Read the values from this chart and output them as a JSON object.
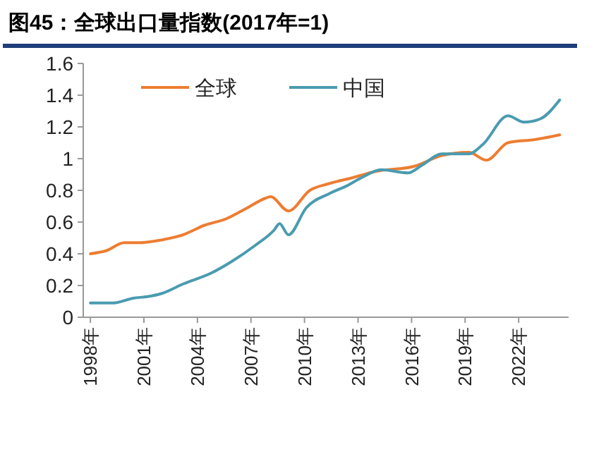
{
  "chart_data": {
    "type": "line",
    "title": "图45：全球出口量指数(2017年=1)",
    "legend": "top",
    "line_style": "solid",
    "marker": "none",
    "xlim": [
      1997.6,
      2024.8
    ],
    "xticks": [
      {
        "value": 1998,
        "label": "1998年"
      },
      {
        "value": 2001,
        "label": "2001年"
      },
      {
        "value": 2004,
        "label": "2004年"
      },
      {
        "value": 2007,
        "label": "2007年"
      },
      {
        "value": 2010,
        "label": "2010年"
      },
      {
        "value": 2013,
        "label": "2013年"
      },
      {
        "value": 2016,
        "label": "2016年"
      },
      {
        "value": 2019,
        "label": "2019年"
      },
      {
        "value": 2022,
        "label": "2022年"
      }
    ],
    "ylim": [
      0,
      1.6
    ],
    "yticks": [
      0,
      0.2,
      0.4,
      0.6,
      0.8,
      1,
      1.2,
      1.4,
      1.6
    ],
    "series": [
      {
        "name": "全球",
        "color": "#ed7d31",
        "x": [
          1998,
          1998.9,
          1999.9,
          2000.8,
          2001.6,
          2003.2,
          2004.4,
          2005.6,
          2006.8,
          2007.8,
          2008.1,
          2009.1,
          2010.3,
          2011.3,
          2012.7,
          2014,
          2016.1,
          2017.7,
          2019.2,
          2020.2,
          2021.4,
          2022.9,
          2024.3
        ],
        "values": [
          0.4,
          0.42,
          0.47,
          0.47,
          0.48,
          0.52,
          0.58,
          0.62,
          0.69,
          0.75,
          0.76,
          0.67,
          0.8,
          0.84,
          0.88,
          0.92,
          0.95,
          1.02,
          1.04,
          0.99,
          1.1,
          1.12,
          1.15
        ]
      },
      {
        "name": "中国",
        "color": "#4a9bb0",
        "x": [
          1998,
          1999.3,
          2000.4,
          2001.2,
          2002,
          2003.2,
          2004.8,
          2005.9,
          2007.2,
          2008.3,
          2008.6,
          2009.1,
          2010.1,
          2011.4,
          2012.4,
          2013.2,
          2014.3,
          2015.8,
          2016.6,
          2017.7,
          2019.2,
          2020,
          2021.4,
          2022.3,
          2023.2,
          2024.3
        ],
        "values": [
          0.09,
          0.09,
          0.12,
          0.13,
          0.15,
          0.21,
          0.28,
          0.35,
          0.45,
          0.55,
          0.59,
          0.52,
          0.69,
          0.78,
          0.83,
          0.88,
          0.93,
          0.91,
          0.96,
          1.03,
          1.03,
          1.09,
          1.27,
          1.23,
          1.25,
          1.37
        ]
      }
    ]
  }
}
